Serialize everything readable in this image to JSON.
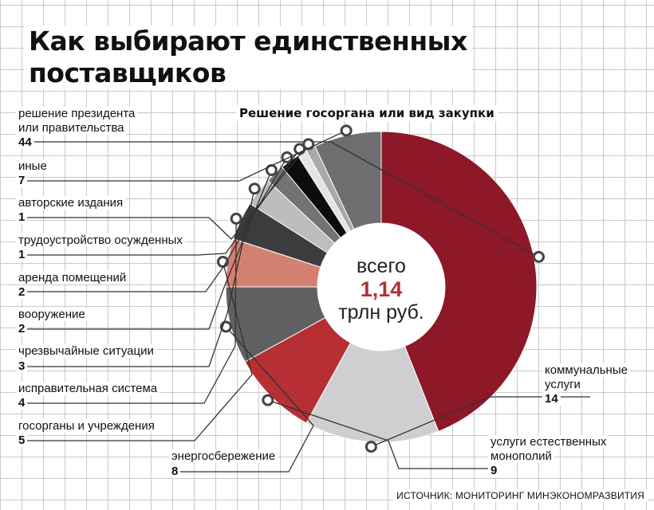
{
  "title_lines": [
    "Как выбирают единственных",
    "поставщиков"
  ],
  "subtitle": "Решение госоргана или вид закупки",
  "center": {
    "line1": "всего",
    "total": "1,14",
    "unit": "трлн руб."
  },
  "source": "ИСТОЧНИК: МОНИТОРИНГ МИНЭКОНОМРАЗВИТИЯ",
  "chart_data": {
    "type": "donut",
    "total_label": "1,14",
    "unit": "трлн руб.",
    "series": [
      {
        "label": "решение президента или правительства",
        "value": 44,
        "color": "#8d1828"
      },
      {
        "label": "коммунальные услуги",
        "value": 14,
        "color": "#cfcfd1"
      },
      {
        "label": "услуги естественных монополий",
        "value": 9,
        "color": "#b52f35"
      },
      {
        "label": "энергосбережение",
        "value": 8,
        "color": "#606062"
      },
      {
        "label": "госорганы и учреждения",
        "value": 5,
        "color": "#d48070"
      },
      {
        "label": "исправительная система",
        "value": 4,
        "color": "#3c3c3e"
      },
      {
        "label": "чрезвычайные ситуации",
        "value": 3,
        "color": "#bdbdbf"
      },
      {
        "label": "вооружение",
        "value": 2,
        "color": "#737375"
      },
      {
        "label": "аренда помещений",
        "value": 2,
        "color": "#0c0c0c"
      },
      {
        "label": "трудоустройство осужденных",
        "value": 1,
        "color": "#e4e4e6"
      },
      {
        "label": "авторские издания",
        "value": 1,
        "color": "#a9a9ab"
      },
      {
        "label": "иные",
        "value": 7,
        "color": "#6e6e70"
      }
    ]
  }
}
